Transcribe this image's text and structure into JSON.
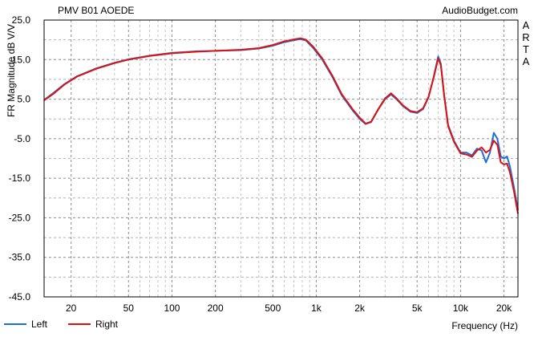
{
  "chart_data": {
    "type": "line",
    "title": "PMV B01 AOEDE",
    "watermark": "AudioBudget.com",
    "side_label": [
      "A",
      "R",
      "T",
      "A"
    ],
    "xlabel": "Frequency (Hz)",
    "ylabel": "FR Magnitude dB V/V",
    "x_scale": "log",
    "xlim": [
      13,
      25000
    ],
    "ylim": [
      -45,
      25
    ],
    "grid": true,
    "y_ticks": [
      {
        "value": 25,
        "label": "25.0"
      },
      {
        "value": 15,
        "label": "15.0"
      },
      {
        "value": 5,
        "label": "5.0"
      },
      {
        "value": -5,
        "label": "-5.0"
      },
      {
        "value": -15,
        "label": "-15.0"
      },
      {
        "value": -25,
        "label": "-25.0"
      },
      {
        "value": -35,
        "label": "-35.0"
      },
      {
        "value": -45,
        "label": "-45.0"
      }
    ],
    "x_ticks": [
      {
        "value": 20,
        "label": "20"
      },
      {
        "value": 50,
        "label": "50"
      },
      {
        "value": 100,
        "label": "100"
      },
      {
        "value": 200,
        "label": "200"
      },
      {
        "value": 500,
        "label": "500"
      },
      {
        "value": 1000,
        "label": "1k"
      },
      {
        "value": 2000,
        "label": "2k"
      },
      {
        "value": 5000,
        "label": "5k"
      },
      {
        "value": 10000,
        "label": "10k"
      },
      {
        "value": 20000,
        "label": "20k"
      }
    ],
    "legend_position": "bottom-left",
    "series": [
      {
        "name": "Left",
        "color": "#1e6fd9",
        "points": [
          [
            13,
            4.8
          ],
          [
            15,
            6.5
          ],
          [
            18,
            8.8
          ],
          [
            22,
            10.8
          ],
          [
            30,
            12.8
          ],
          [
            40,
            14.2
          ],
          [
            50,
            15.1
          ],
          [
            70,
            16.0
          ],
          [
            100,
            16.7
          ],
          [
            150,
            17.1
          ],
          [
            200,
            17.2
          ],
          [
            300,
            17.4
          ],
          [
            400,
            17.8
          ],
          [
            500,
            18.5
          ],
          [
            600,
            19.4
          ],
          [
            700,
            19.9
          ],
          [
            780,
            20.2
          ],
          [
            850,
            19.8
          ],
          [
            950,
            18.0
          ],
          [
            1100,
            15.0
          ],
          [
            1300,
            10.5
          ],
          [
            1500,
            6.0
          ],
          [
            1800,
            2.0
          ],
          [
            2000,
            0.0
          ],
          [
            2200,
            -1.3
          ],
          [
            2400,
            -0.8
          ],
          [
            2700,
            2.5
          ],
          [
            3000,
            5.0
          ],
          [
            3300,
            6.2
          ],
          [
            3600,
            5.0
          ],
          [
            4000,
            3.2
          ],
          [
            4500,
            1.8
          ],
          [
            5000,
            1.5
          ],
          [
            5500,
            2.5
          ],
          [
            6000,
            5.5
          ],
          [
            6500,
            10.5
          ],
          [
            7000,
            15.8
          ],
          [
            7300,
            14.0
          ],
          [
            7700,
            6.0
          ],
          [
            8200,
            -1.5
          ],
          [
            9000,
            -5.5
          ],
          [
            10000,
            -8.5
          ],
          [
            11000,
            -8.5
          ],
          [
            12000,
            -9.2
          ],
          [
            13000,
            -7.5
          ],
          [
            14000,
            -8.0
          ],
          [
            15000,
            -11.0
          ],
          [
            16000,
            -8.5
          ],
          [
            17000,
            -3.5
          ],
          [
            18000,
            -5.0
          ],
          [
            19000,
            -9.5
          ],
          [
            20000,
            -10.0
          ],
          [
            21000,
            -9.5
          ],
          [
            22000,
            -12.0
          ],
          [
            23500,
            -17.5
          ],
          [
            25000,
            -23.0
          ]
        ]
      },
      {
        "name": "Right",
        "color": "#dd1111",
        "points": [
          [
            13,
            4.7
          ],
          [
            15,
            6.3
          ],
          [
            18,
            8.7
          ],
          [
            22,
            10.7
          ],
          [
            30,
            12.7
          ],
          [
            40,
            14.1
          ],
          [
            50,
            15.0
          ],
          [
            70,
            15.9
          ],
          [
            100,
            16.6
          ],
          [
            150,
            17.0
          ],
          [
            200,
            17.2
          ],
          [
            300,
            17.5
          ],
          [
            400,
            17.9
          ],
          [
            500,
            18.7
          ],
          [
            600,
            19.6
          ],
          [
            700,
            20.1
          ],
          [
            780,
            20.4
          ],
          [
            850,
            20.0
          ],
          [
            950,
            18.3
          ],
          [
            1100,
            15.3
          ],
          [
            1300,
            10.8
          ],
          [
            1500,
            6.3
          ],
          [
            1800,
            2.3
          ],
          [
            2000,
            0.3
          ],
          [
            2200,
            -1.2
          ],
          [
            2400,
            -0.7
          ],
          [
            2700,
            2.6
          ],
          [
            3000,
            5.2
          ],
          [
            3300,
            6.5
          ],
          [
            3600,
            5.2
          ],
          [
            4000,
            3.4
          ],
          [
            4500,
            2.0
          ],
          [
            5000,
            1.7
          ],
          [
            5500,
            2.7
          ],
          [
            6000,
            5.6
          ],
          [
            6500,
            10.3
          ],
          [
            7000,
            15.3
          ],
          [
            7300,
            13.6
          ],
          [
            7700,
            5.8
          ],
          [
            8200,
            -1.8
          ],
          [
            9000,
            -5.8
          ],
          [
            10000,
            -8.7
          ],
          [
            11000,
            -9.0
          ],
          [
            12000,
            -9.6
          ],
          [
            13000,
            -8.0
          ],
          [
            14000,
            -7.2
          ],
          [
            15000,
            -8.5
          ],
          [
            16000,
            -7.8
          ],
          [
            17000,
            -5.5
          ],
          [
            18000,
            -6.5
          ],
          [
            19000,
            -11.0
          ],
          [
            20000,
            -11.5
          ],
          [
            21000,
            -11.3
          ],
          [
            22000,
            -13.5
          ],
          [
            23500,
            -18.5
          ],
          [
            25000,
            -24.0
          ]
        ]
      }
    ]
  }
}
